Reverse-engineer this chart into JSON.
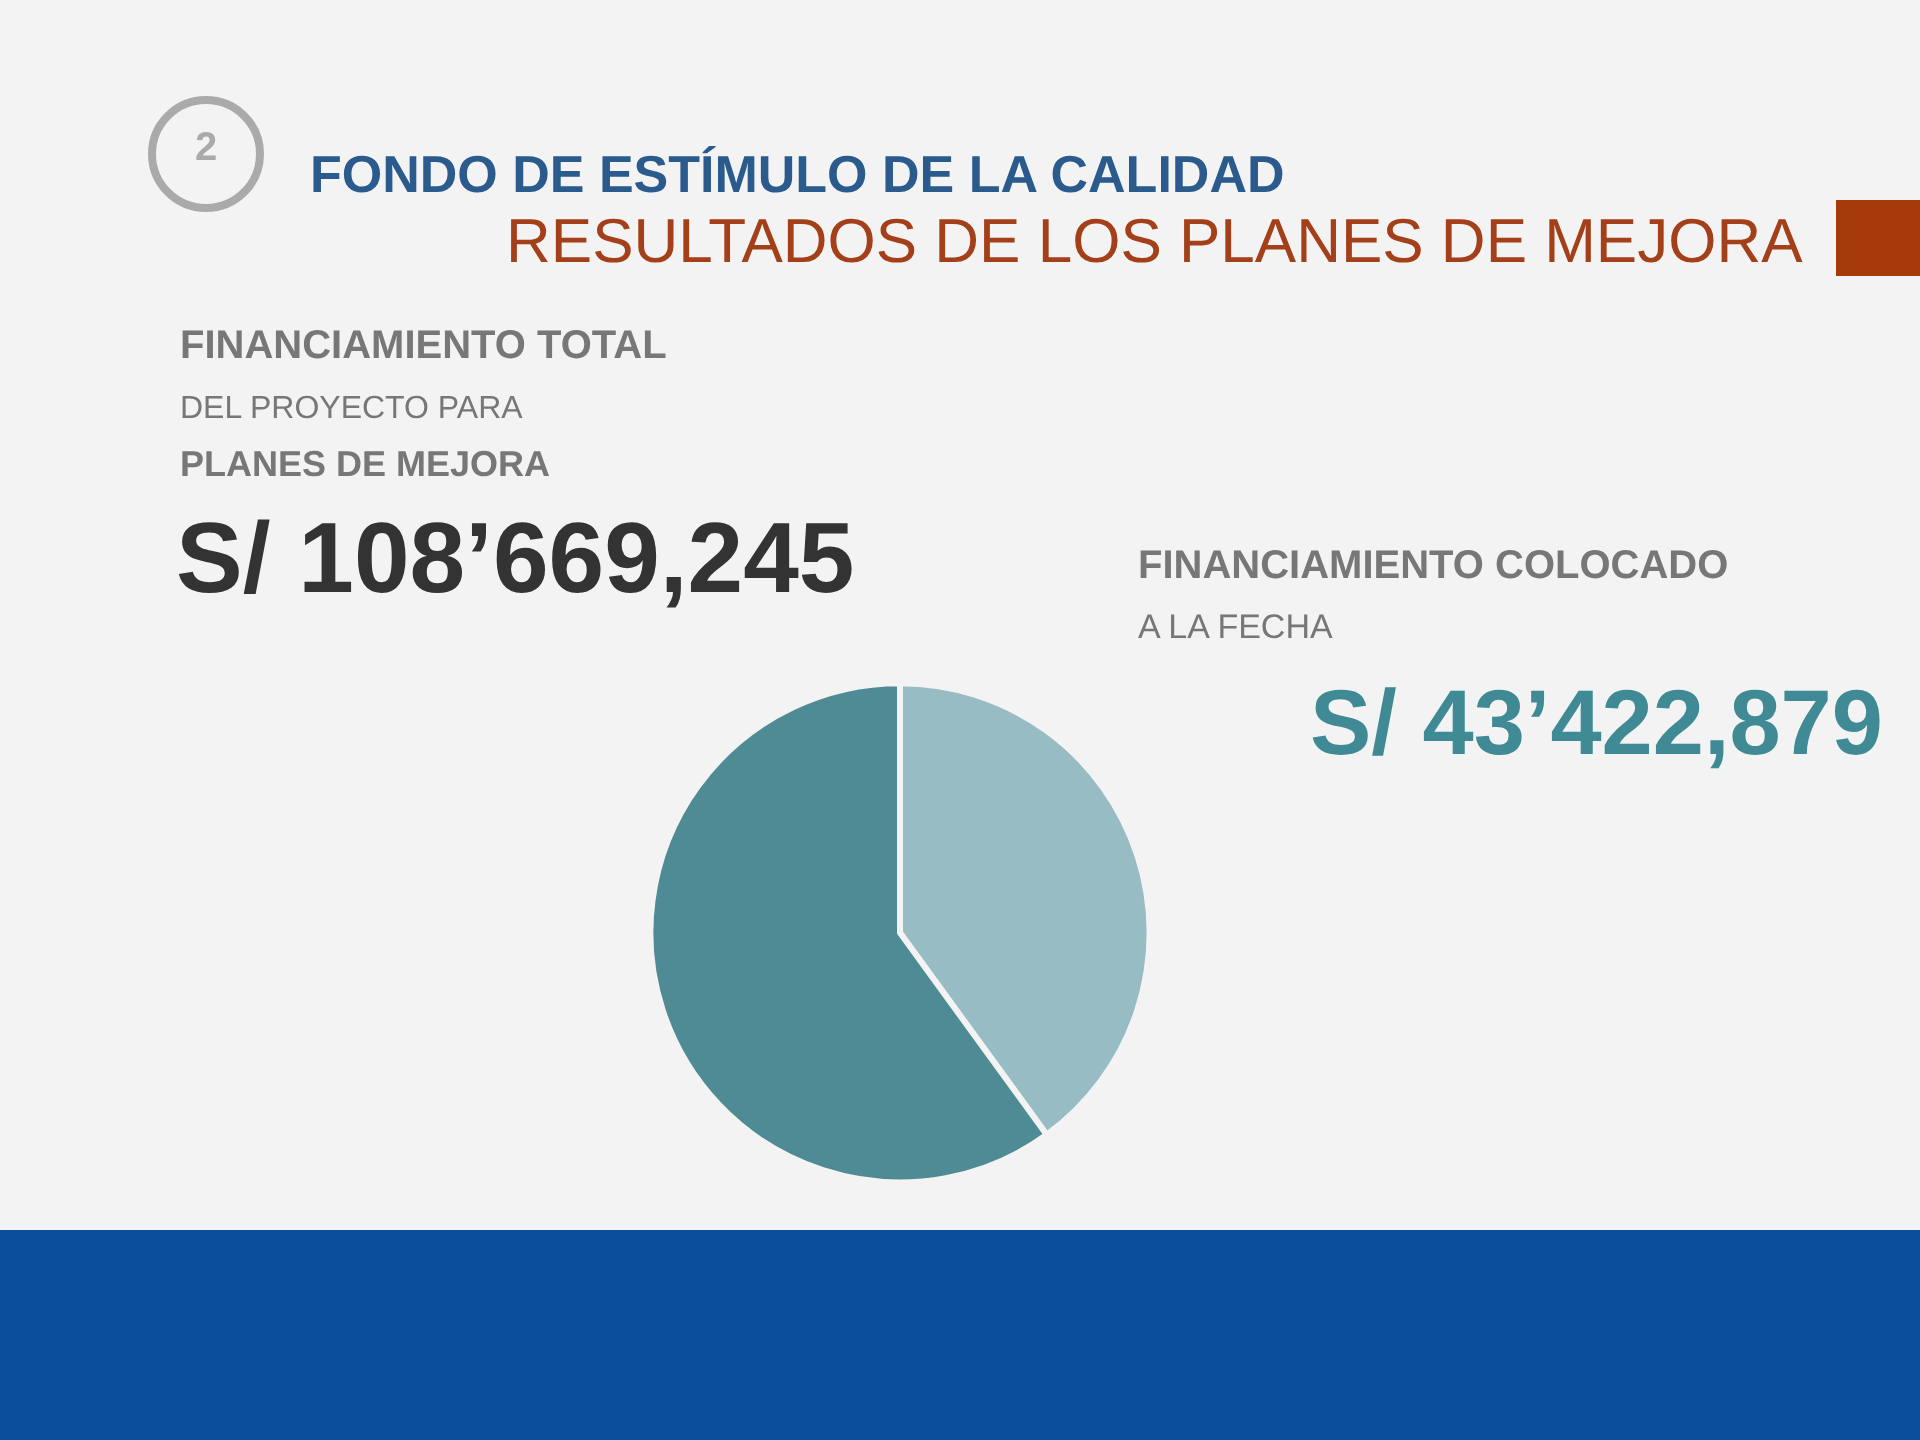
{
  "chart_data": {
    "type": "pie",
    "title": "FONDO DE ESTÍMULO DE LA CALIDAD",
    "subtitle": "RESULTADOS DE LOS PLANES DE MEJORA",
    "categories": [
      null,
      null
    ],
    "values": [
      40,
      60
    ],
    "colors": [
      "#97bcc4",
      "#4f8b95"
    ],
    "annotations": [
      "2",
      "FINANCIAMIENTO TOTAL",
      "DEL PROYECTO PARA",
      "PLANES DE MEJORA",
      "S/ 108’669,245",
      "FINANCIAMIENTO COLOCADO",
      "A LA FECHA",
      "S/ 43’422,879"
    ]
  }
}
